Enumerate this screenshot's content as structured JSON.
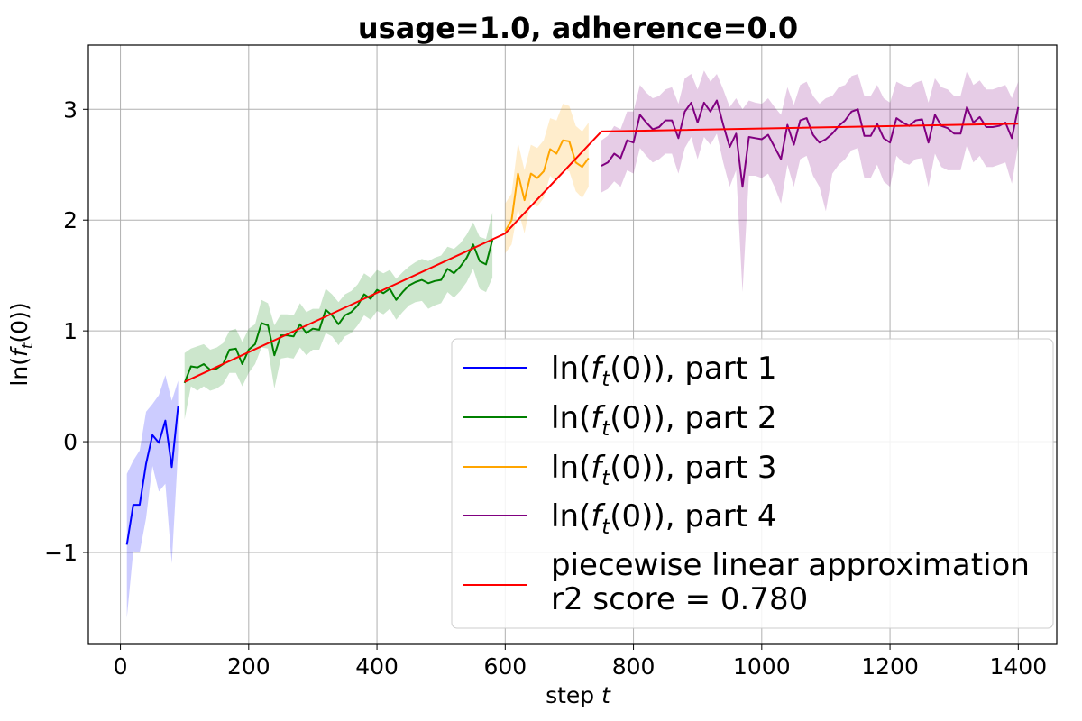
{
  "chart_data": {
    "type": "line",
    "title": "usage=1.0, adherence=0.0",
    "xlabel": "step",
    "xlabel_var": "t",
    "ylabel": "ln(f_t(0))",
    "xlim": [
      -50,
      1460
    ],
    "ylim": [
      -1.83,
      3.58
    ],
    "xticks": [
      0,
      200,
      400,
      600,
      800,
      1000,
      1200,
      1400
    ],
    "yticks": [
      -1,
      0,
      1,
      2,
      3
    ],
    "ytick_labels": [
      "−1",
      "0",
      "1",
      "2",
      "3"
    ],
    "grid": true,
    "legend_position": "lower-right",
    "series": [
      {
        "name": "ln(f_t(0)), part 1",
        "color": "#0000ff",
        "x": [
          10,
          20,
          30,
          40,
          50,
          60,
          70,
          80,
          90
        ],
        "y": [
          -0.93,
          -0.57,
          -0.57,
          -0.2,
          0.06,
          -0.01,
          0.19,
          -0.23,
          0.32
        ],
        "lower": [
          -1.59,
          -0.99,
          -1.0,
          -0.69,
          -0.22,
          -0.45,
          -0.38,
          -1.1,
          -0.07
        ],
        "upper": [
          -0.29,
          -0.17,
          -0.08,
          0.27,
          0.34,
          0.42,
          0.6,
          0.37,
          0.55
        ]
      },
      {
        "name": "ln(f_t(0)), part 2",
        "color": "#008000",
        "x": [
          100,
          110,
          120,
          130,
          140,
          150,
          160,
          170,
          180,
          190,
          200,
          210,
          220,
          230,
          240,
          250,
          260,
          270,
          280,
          290,
          300,
          310,
          320,
          330,
          340,
          350,
          360,
          370,
          380,
          390,
          400,
          410,
          420,
          430,
          440,
          450,
          460,
          470,
          480,
          490,
          500,
          510,
          520,
          530,
          540,
          550,
          560,
          570,
          580
        ],
        "y": [
          0.53,
          0.68,
          0.67,
          0.7,
          0.65,
          0.66,
          0.7,
          0.83,
          0.84,
          0.7,
          0.83,
          0.88,
          1.07,
          1.05,
          0.78,
          0.96,
          0.96,
          0.95,
          1.06,
          0.98,
          1.02,
          1.01,
          1.19,
          1.14,
          1.06,
          1.14,
          1.17,
          1.23,
          1.33,
          1.29,
          1.37,
          1.34,
          1.38,
          1.28,
          1.35,
          1.41,
          1.44,
          1.46,
          1.43,
          1.45,
          1.46,
          1.56,
          1.52,
          1.58,
          1.66,
          1.78,
          1.63,
          1.6,
          1.82
        ],
        "lower": [
          0.2,
          0.5,
          0.46,
          0.5,
          0.46,
          0.48,
          0.52,
          0.62,
          0.62,
          0.5,
          0.62,
          0.7,
          0.85,
          0.84,
          0.48,
          0.75,
          0.76,
          0.75,
          0.85,
          0.78,
          0.83,
          0.83,
          0.98,
          0.95,
          0.87,
          0.95,
          0.98,
          1.05,
          1.14,
          1.1,
          1.18,
          1.15,
          1.2,
          1.1,
          1.17,
          1.23,
          1.26,
          1.27,
          1.2,
          1.23,
          1.25,
          1.35,
          1.3,
          1.36,
          1.44,
          1.56,
          1.38,
          1.35,
          1.48
        ],
        "upper": [
          0.8,
          0.84,
          0.86,
          0.88,
          0.83,
          0.85,
          0.89,
          1.0,
          1.02,
          0.9,
          1.02,
          1.06,
          1.28,
          1.25,
          1.05,
          1.15,
          1.15,
          1.14,
          1.25,
          1.17,
          1.2,
          1.2,
          1.38,
          1.33,
          1.26,
          1.33,
          1.36,
          1.42,
          1.52,
          1.48,
          1.55,
          1.52,
          1.55,
          1.47,
          1.53,
          1.58,
          1.62,
          1.65,
          1.63,
          1.66,
          1.68,
          1.76,
          1.74,
          1.79,
          1.87,
          1.98,
          1.85,
          1.83,
          2.07
        ]
      },
      {
        "name": "ln(f_t(0)), part 3",
        "color": "#ffa500",
        "x": [
          600,
          610,
          620,
          630,
          640,
          650,
          660,
          670,
          680,
          690,
          700,
          710,
          720,
          730
        ],
        "y": [
          1.9,
          2.0,
          2.42,
          2.18,
          2.42,
          2.38,
          2.44,
          2.64,
          2.6,
          2.72,
          2.71,
          2.52,
          2.48,
          2.56
        ],
        "lower": [
          1.7,
          1.78,
          2.1,
          1.88,
          2.18,
          2.12,
          2.2,
          2.4,
          2.34,
          2.46,
          2.44,
          2.26,
          2.2,
          2.3
        ],
        "upper": [
          2.15,
          2.24,
          2.7,
          2.45,
          2.68,
          2.65,
          2.72,
          2.92,
          2.9,
          3.05,
          3.03,
          2.85,
          2.8,
          2.88
        ]
      },
      {
        "name": "ln(f_t(0)), part 4",
        "color": "#800080",
        "x": [
          750,
          760,
          770,
          780,
          790,
          800,
          810,
          820,
          830,
          840,
          850,
          860,
          870,
          880,
          890,
          900,
          910,
          920,
          930,
          940,
          950,
          960,
          970,
          980,
          990,
          1000,
          1010,
          1020,
          1030,
          1040,
          1050,
          1060,
          1070,
          1080,
          1090,
          1100,
          1110,
          1120,
          1130,
          1140,
          1150,
          1160,
          1170,
          1180,
          1190,
          1200,
          1210,
          1220,
          1230,
          1240,
          1250,
          1260,
          1270,
          1280,
          1290,
          1300,
          1310,
          1320,
          1330,
          1340,
          1350,
          1360,
          1370,
          1380,
          1390,
          1400
        ],
        "y": [
          2.49,
          2.52,
          2.6,
          2.56,
          2.72,
          2.7,
          2.95,
          2.88,
          2.82,
          2.84,
          2.9,
          2.9,
          2.74,
          2.98,
          3.06,
          2.88,
          3.06,
          2.98,
          3.08,
          2.86,
          2.66,
          2.78,
          2.3,
          2.75,
          2.74,
          2.73,
          2.77,
          2.66,
          2.55,
          2.86,
          2.68,
          2.9,
          2.92,
          2.77,
          2.7,
          2.73,
          2.78,
          2.85,
          2.9,
          2.98,
          3.0,
          2.76,
          2.76,
          2.87,
          2.74,
          2.7,
          2.92,
          2.88,
          2.85,
          2.9,
          2.91,
          2.7,
          2.95,
          2.85,
          2.83,
          2.78,
          2.78,
          3.02,
          2.88,
          2.93,
          2.84,
          2.84,
          2.85,
          2.88,
          2.74,
          3.02
        ],
        "lower": [
          2.25,
          2.28,
          2.35,
          2.3,
          2.45,
          2.42,
          2.65,
          2.58,
          2.52,
          2.55,
          2.6,
          2.6,
          2.42,
          2.65,
          2.75,
          2.55,
          2.75,
          2.68,
          2.78,
          2.52,
          2.3,
          2.45,
          1.35,
          2.4,
          2.4,
          2.38,
          2.42,
          2.3,
          2.15,
          2.5,
          2.3,
          2.55,
          2.58,
          2.4,
          2.3,
          2.08,
          2.42,
          2.5,
          2.55,
          2.63,
          2.65,
          2.38,
          2.38,
          2.5,
          2.35,
          2.3,
          2.58,
          2.52,
          2.5,
          2.55,
          2.56,
          2.3,
          2.6,
          2.48,
          2.45,
          2.45,
          2.45,
          2.68,
          2.52,
          2.58,
          2.48,
          2.48,
          2.5,
          2.52,
          2.33,
          2.68
        ],
        "upper": [
          2.72,
          2.76,
          2.85,
          2.82,
          2.98,
          2.98,
          3.22,
          3.15,
          3.1,
          3.12,
          3.18,
          3.2,
          3.05,
          3.28,
          3.32,
          3.18,
          3.35,
          3.25,
          3.32,
          3.18,
          3.02,
          3.1,
          3.0,
          3.08,
          3.06,
          3.05,
          3.1,
          3.02,
          2.95,
          3.2,
          3.04,
          3.22,
          3.25,
          3.12,
          3.05,
          3.1,
          3.12,
          3.2,
          3.22,
          3.3,
          3.32,
          3.12,
          3.12,
          3.22,
          3.1,
          3.06,
          3.25,
          3.22,
          3.2,
          3.24,
          3.26,
          3.06,
          3.28,
          3.2,
          3.18,
          3.12,
          3.12,
          3.35,
          3.22,
          3.26,
          3.18,
          3.18,
          3.2,
          3.22,
          3.1,
          3.25
        ]
      },
      {
        "name": "piecewise linear approximation",
        "name_line2": "r2 score = 0.780",
        "color": "#ff0000",
        "x": [
          100,
          600,
          750,
          1400
        ],
        "y": [
          0.54,
          1.88,
          2.8,
          2.87
        ]
      }
    ]
  }
}
